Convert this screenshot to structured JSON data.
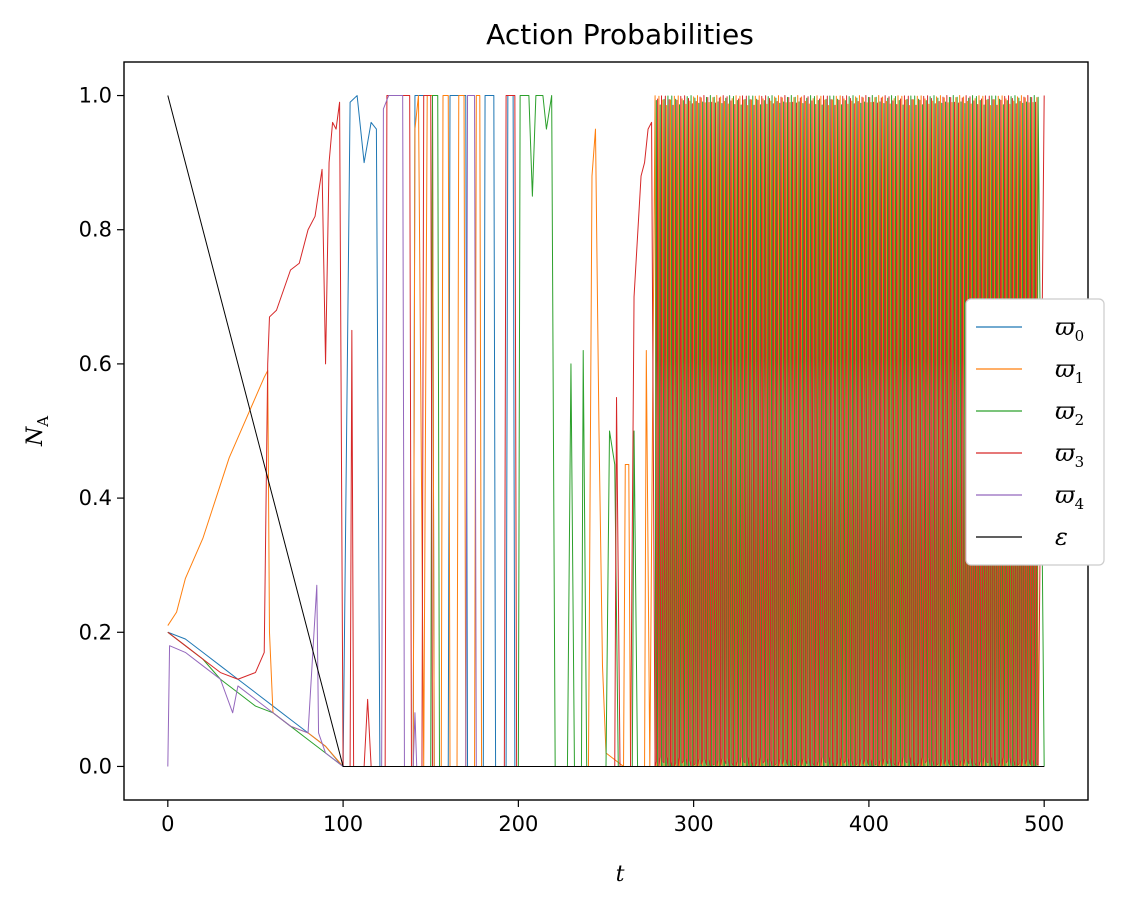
{
  "chart_data": {
    "type": "line",
    "title": "Action Probabilities",
    "xlabel": "t",
    "ylabel": "N",
    "ylabel_sub": "A",
    "xlim": [
      -25,
      525
    ],
    "ylim": [
      -0.05,
      1.05
    ],
    "xticks": [
      0,
      100,
      200,
      300,
      400,
      500
    ],
    "xtick_labels": [
      "0",
      "100",
      "200",
      "300",
      "400",
      "500"
    ],
    "yticks": [
      0.0,
      0.2,
      0.4,
      0.6,
      0.8,
      1.0
    ],
    "ytick_labels": [
      "0.0",
      "0.2",
      "0.4",
      "0.6",
      "0.8",
      "1.0"
    ],
    "grid": false,
    "legend_position": "center-right",
    "series": [
      {
        "name": "ϖ0",
        "symbol": "ϖ",
        "sub": "0",
        "color": "#1f77b4",
        "values": [
          [
            0,
            0.2
          ],
          [
            10,
            0.19
          ],
          [
            20,
            0.17
          ],
          [
            30,
            0.15
          ],
          [
            40,
            0.13
          ],
          [
            50,
            0.11
          ],
          [
            60,
            0.09
          ],
          [
            70,
            0.07
          ],
          [
            80,
            0.05
          ],
          [
            90,
            0.03
          ],
          [
            98,
            0.005
          ],
          [
            100,
            0.0
          ],
          [
            104,
            0.99
          ],
          [
            108,
            1.0
          ],
          [
            112,
            0.9
          ],
          [
            116,
            0.96
          ],
          [
            119,
            0.95
          ],
          [
            121,
            0.0
          ],
          [
            140,
            0.0
          ],
          [
            141,
            1.0
          ],
          [
            151,
            1.0
          ],
          [
            152,
            0.0
          ],
          [
            160,
            0.0
          ],
          [
            161,
            1.0
          ],
          [
            170,
            1.0
          ],
          [
            171,
            0.0
          ],
          [
            180,
            0.0
          ],
          [
            181,
            1.0
          ],
          [
            186,
            1.0
          ],
          [
            187,
            0.0
          ],
          [
            193,
            0.0
          ],
          [
            194,
            1.0
          ],
          [
            197,
            1.0
          ],
          [
            198,
            0.0
          ],
          [
            500,
            0.0
          ]
        ]
      },
      {
        "name": "ϖ1",
        "symbol": "ϖ",
        "sub": "1",
        "color": "#ff7f0e",
        "values": [
          [
            0,
            0.21
          ],
          [
            5,
            0.23
          ],
          [
            10,
            0.28
          ],
          [
            15,
            0.31
          ],
          [
            20,
            0.34
          ],
          [
            25,
            0.38
          ],
          [
            30,
            0.42
          ],
          [
            35,
            0.46
          ],
          [
            40,
            0.49
          ],
          [
            45,
            0.52
          ],
          [
            50,
            0.55
          ],
          [
            55,
            0.58
          ],
          [
            57,
            0.59
          ],
          [
            58,
            0.2
          ],
          [
            60,
            0.08
          ],
          [
            70,
            0.06
          ],
          [
            80,
            0.05
          ],
          [
            90,
            0.03
          ],
          [
            100,
            0.0
          ],
          [
            140,
            0.0
          ],
          [
            141,
            0.95
          ],
          [
            143,
            1.0
          ],
          [
            146,
            0.0
          ],
          [
            148,
            1.0
          ],
          [
            151,
            1.0
          ],
          [
            152,
            0.0
          ],
          [
            156,
            0.0
          ],
          [
            157,
            1.0
          ],
          [
            160,
            1.0
          ],
          [
            161,
            0.0
          ],
          [
            165,
            0.0
          ],
          [
            166,
            1.0
          ],
          [
            169,
            1.0
          ],
          [
            170,
            0.0
          ],
          [
            175,
            0.0
          ],
          [
            176,
            1.0
          ],
          [
            178,
            1.0
          ],
          [
            179,
            0.0
          ],
          [
            240,
            0.0
          ],
          [
            242,
            0.88
          ],
          [
            244,
            0.95
          ],
          [
            246,
            0.5
          ],
          [
            248,
            0.15
          ],
          [
            250,
            0.02
          ],
          [
            260,
            0.0
          ],
          [
            261,
            0.45
          ],
          [
            263,
            0.45
          ],
          [
            264,
            0.0
          ],
          [
            272,
            0.0
          ],
          [
            273,
            0.62
          ],
          [
            275,
            0.0
          ],
          [
            280,
            0.0
          ],
          [
            281,
            0.98
          ],
          [
            283,
            0.0
          ],
          [
            500,
            0.0
          ]
        ]
      },
      {
        "name": "ϖ2",
        "symbol": "ϖ",
        "sub": "2",
        "color": "#2ca02c",
        "values": [
          [
            0,
            0.2
          ],
          [
            10,
            0.18
          ],
          [
            20,
            0.16
          ],
          [
            30,
            0.13
          ],
          [
            40,
            0.11
          ],
          [
            50,
            0.09
          ],
          [
            60,
            0.08
          ],
          [
            70,
            0.06
          ],
          [
            80,
            0.04
          ],
          [
            90,
            0.02
          ],
          [
            100,
            0.0
          ],
          [
            150,
            0.0
          ],
          [
            151,
            1.0
          ],
          [
            154,
            1.0
          ],
          [
            155,
            0.0
          ],
          [
            200,
            0.0
          ],
          [
            201,
            1.0
          ],
          [
            206,
            1.0
          ],
          [
            208,
            0.85
          ],
          [
            210,
            1.0
          ],
          [
            214,
            1.0
          ],
          [
            216,
            0.95
          ],
          [
            219,
            1.0
          ],
          [
            221,
            0.0
          ],
          [
            228,
            0.0
          ],
          [
            230,
            0.6
          ],
          [
            232,
            0.0
          ],
          [
            236,
            0.0
          ],
          [
            237,
            0.62
          ],
          [
            239,
            0.0
          ],
          [
            250,
            0.0
          ],
          [
            252,
            0.5
          ],
          [
            255,
            0.45
          ],
          [
            257,
            0.0
          ],
          [
            265,
            0.0
          ],
          [
            266,
            0.5
          ],
          [
            268,
            0.0
          ],
          [
            300,
            0.0
          ],
          [
            500,
            0.0
          ]
        ]
      },
      {
        "name": "ϖ3",
        "symbol": "ϖ",
        "sub": "3",
        "color": "#d62728",
        "values": [
          [
            0,
            0.2
          ],
          [
            10,
            0.18
          ],
          [
            20,
            0.16
          ],
          [
            30,
            0.14
          ],
          [
            40,
            0.13
          ],
          [
            50,
            0.14
          ],
          [
            55,
            0.17
          ],
          [
            57,
            0.6
          ],
          [
            58,
            0.67
          ],
          [
            62,
            0.68
          ],
          [
            66,
            0.71
          ],
          [
            70,
            0.74
          ],
          [
            75,
            0.75
          ],
          [
            80,
            0.8
          ],
          [
            84,
            0.82
          ],
          [
            88,
            0.89
          ],
          [
            90,
            0.6
          ],
          [
            92,
            0.9
          ],
          [
            94,
            0.96
          ],
          [
            96,
            0.95
          ],
          [
            98,
            0.99
          ],
          [
            100,
            0.0
          ],
          [
            104,
            0.0
          ],
          [
            105,
            0.65
          ],
          [
            106,
            0.0
          ],
          [
            112,
            0.0
          ],
          [
            114,
            0.1
          ],
          [
            116,
            0.0
          ],
          [
            124,
            0.0
          ],
          [
            125,
            1.0
          ],
          [
            138,
            1.0
          ],
          [
            139,
            0.0
          ],
          [
            145,
            0.0
          ],
          [
            146,
            1.0
          ],
          [
            150,
            1.0
          ],
          [
            151,
            0.0
          ],
          [
            192,
            0.0
          ],
          [
            193,
            1.0
          ],
          [
            198,
            1.0
          ],
          [
            199,
            0.0
          ],
          [
            255,
            0.0
          ],
          [
            256,
            0.55
          ],
          [
            258,
            0.0
          ],
          [
            264,
            0.0
          ],
          [
            266,
            0.7
          ],
          [
            270,
            0.88
          ],
          [
            272,
            0.9
          ],
          [
            274,
            0.95
          ],
          [
            276,
            0.96
          ],
          [
            278,
            0.98
          ],
          [
            280,
            0.95
          ],
          [
            285,
            0.97
          ],
          [
            290,
            0.99
          ],
          [
            295,
            0.99
          ],
          [
            300,
            1.0
          ],
          [
            500,
            1.0
          ]
        ]
      },
      {
        "name": "ϖ4",
        "symbol": "ϖ",
        "sub": "4",
        "color": "#9467bd",
        "values": [
          [
            0,
            0.0
          ],
          [
            1,
            0.18
          ],
          [
            10,
            0.17
          ],
          [
            20,
            0.15
          ],
          [
            30,
            0.13
          ],
          [
            37,
            0.08
          ],
          [
            40,
            0.12
          ],
          [
            50,
            0.1
          ],
          [
            60,
            0.08
          ],
          [
            70,
            0.06
          ],
          [
            80,
            0.05
          ],
          [
            85,
            0.27
          ],
          [
            86,
            0.05
          ],
          [
            90,
            0.02
          ],
          [
            100,
            0.0
          ],
          [
            122,
            0.0
          ],
          [
            123,
            0.98
          ],
          [
            126,
            1.0
          ],
          [
            134,
            1.0
          ],
          [
            135,
            0.0
          ],
          [
            140,
            0.0
          ],
          [
            141,
            0.08
          ],
          [
            142,
            0.0
          ],
          [
            170,
            0.0
          ],
          [
            171,
            1.0
          ],
          [
            175,
            1.0
          ],
          [
            176,
            0.0
          ],
          [
            500,
            0.0
          ]
        ]
      },
      {
        "name": "ε",
        "symbol": "ε",
        "sub": "",
        "color": "#000000",
        "values": [
          [
            0,
            1.0
          ],
          [
            100,
            0.0
          ],
          [
            500,
            0.0
          ]
        ]
      }
    ],
    "oscillation": {
      "region_start": 278,
      "region_end": 497,
      "period": 2.2,
      "series_order": [
        "ϖ1",
        "ϖ2",
        "ϖ3"
      ],
      "note": "high-frequency switching between 0 and 1"
    }
  }
}
